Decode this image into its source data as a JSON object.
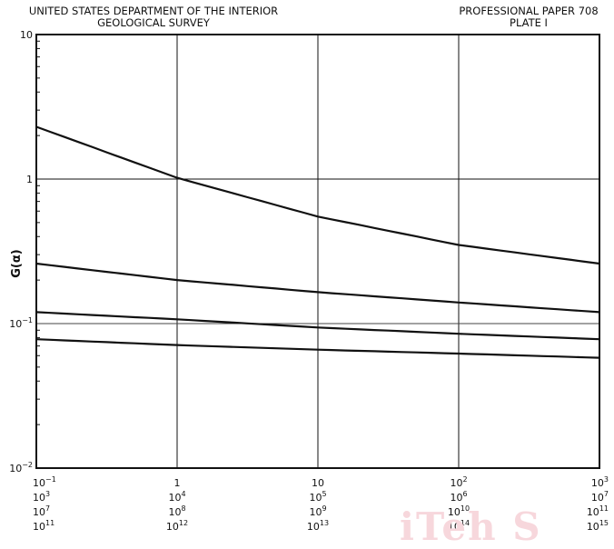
{
  "header": {
    "left_line1": "UNITED STATES DEPARTMENT OF THE INTERIOR",
    "left_line2": "GEOLOGICAL SURVEY",
    "right_line1": "PROFESSIONAL PAPER 708",
    "right_line2": "PLATE I"
  },
  "watermark": "iTeh S",
  "chart_data": {
    "type": "line",
    "ylabel": "G(α)",
    "yscale": "log",
    "ylim": [
      0.01,
      10
    ],
    "y_ticks": [
      {
        "value": 10,
        "label": "10"
      },
      {
        "value": 1,
        "label": "1"
      },
      {
        "value": 0.1,
        "label": "10",
        "exp": "−1"
      },
      {
        "value": 0.01,
        "label": "10",
        "exp": "−2"
      }
    ],
    "y_reference_line": 0.1,
    "x_ticks": [
      [
        [
          "10",
          "−1"
        ],
        [
          "10",
          "3"
        ],
        [
          "10",
          "7"
        ],
        [
          "10",
          "11"
        ]
      ],
      [
        [
          "1",
          ""
        ],
        [
          "10",
          "4"
        ],
        [
          "10",
          "8"
        ],
        [
          "10",
          "12"
        ]
      ],
      [
        [
          "10",
          ""
        ],
        [
          "10",
          "5"
        ],
        [
          "10",
          "9"
        ],
        [
          "10",
          "13"
        ]
      ],
      [
        [
          "10",
          "2"
        ],
        [
          "10",
          "6"
        ],
        [
          "10",
          "10"
        ],
        [
          "10",
          "14"
        ]
      ],
      [
        [
          "10",
          "3"
        ],
        [
          "10",
          "7"
        ],
        [
          "10",
          "11"
        ],
        [
          "10",
          "15"
        ]
      ]
    ],
    "grid": "major vertical and horizontal at decades",
    "x_decades": [
      0,
      1,
      2,
      3,
      4
    ],
    "series": [
      {
        "values": [
          2.3,
          1.02,
          0.55,
          0.35,
          0.26
        ]
      },
      {
        "values": [
          0.26,
          0.2,
          0.165,
          0.14,
          0.12
        ]
      },
      {
        "values": [
          0.12,
          0.107,
          0.094,
          0.085,
          0.078
        ]
      },
      {
        "values": [
          0.078,
          0.071,
          0.066,
          0.062,
          0.058
        ]
      }
    ],
    "line_color": "#111111"
  }
}
